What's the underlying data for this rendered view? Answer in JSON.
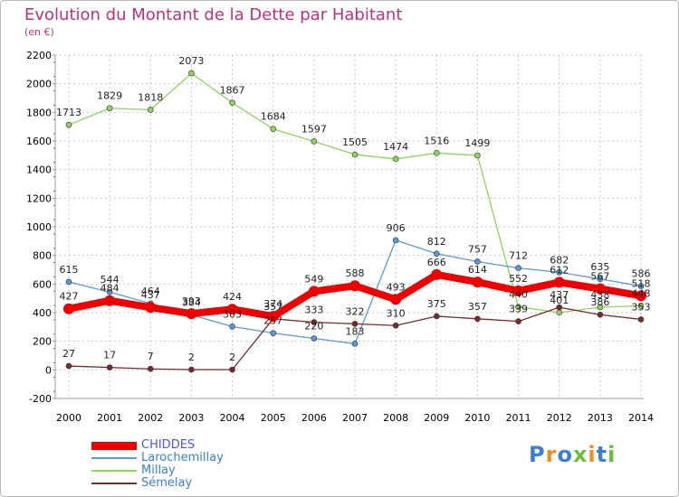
{
  "title": "Evolution du Montant de la Dette par Habitant",
  "subtitle": "(en €)",
  "logo": {
    "text": "Proxiti",
    "colors": [
      "#3a7fd5",
      "#f28c1e",
      "#3a7fd5",
      "#6cbf3a",
      "#f28c1e",
      "#3a7fd5",
      "#6cbf3a"
    ]
  },
  "chart_data": {
    "type": "line",
    "x": [
      "2000",
      "2001",
      "2002",
      "2003",
      "2004",
      "2005",
      "2006",
      "2007",
      "2008",
      "2009",
      "2010",
      "2011",
      "2012",
      "2013",
      "2014"
    ],
    "ylim": [
      -200,
      2200
    ],
    "yticks": [
      "-200",
      "0",
      "200",
      "400",
      "600",
      "800",
      "1000",
      "1200",
      "1400",
      "1600",
      "1800",
      "2000",
      "2200"
    ],
    "grid": true,
    "legend_position": "bottom-left",
    "series": [
      {
        "name": "Millay",
        "color": "#8fd45c",
        "values": [
          1713,
          1829,
          1818,
          2073,
          1867,
          1684,
          1597,
          1505,
          1474,
          1516,
          1499,
          440,
          401,
          438,
          448
        ],
        "labels": [
          "1713",
          "1829",
          "1818",
          "2073",
          "1867",
          "1684",
          "1597",
          "1505",
          "1474",
          "1516",
          "1499",
          "440",
          "401",
          "438",
          "448"
        ]
      },
      {
        "name": "Larochemillay",
        "color": "#5a9ad8",
        "values": [
          615,
          544,
          464,
          384,
          303,
          257,
          220,
          183,
          906,
          812,
          757,
          712,
          682,
          635,
          586
        ],
        "labels": [
          "615",
          "544",
          "464",
          "384",
          "303",
          "257",
          "220",
          "183",
          "906",
          "812",
          "757",
          "712",
          "682",
          "635",
          "586"
        ]
      },
      {
        "name": "Sémelay",
        "color": "#7a2a2a",
        "values": [
          27,
          17,
          7,
          2,
          2,
          357,
          333,
          322,
          310,
          375,
          357,
          339,
          437,
          386,
          353
        ],
        "labels": [
          "27",
          "17",
          "7",
          "2",
          "2",
          "357",
          "333",
          "322",
          "310",
          "375",
          "357",
          "339",
          "437",
          "386",
          "353"
        ]
      },
      {
        "name": "CHIDDES",
        "color": "#ee0000",
        "values": [
          427,
          484,
          437,
          393,
          424,
          374,
          549,
          588,
          493,
          666,
          614,
          552,
          612,
          567,
          518
        ],
        "labels": [
          "427",
          "484",
          "437",
          "393",
          "424",
          "374",
          "549",
          "588",
          "493",
          "666",
          "614",
          "552",
          "612",
          "567",
          "518"
        ]
      }
    ]
  }
}
